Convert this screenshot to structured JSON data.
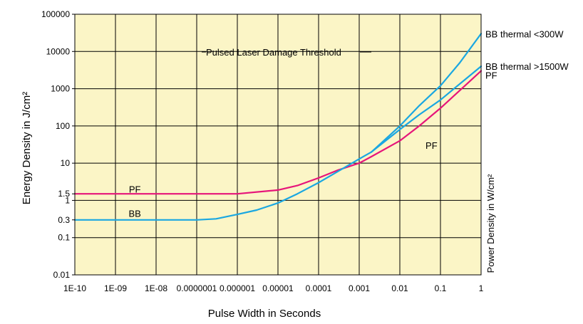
{
  "chart_data": {
    "type": "line",
    "title": "Pulsed Laser Damage Threshold",
    "xlabel": "Pulse Width in Seconds",
    "ylabel": "Energy Density in J/cm²",
    "ylabel_right": "Power Density in W/cm²",
    "x_scale": "log",
    "y_scale": "log",
    "xlim": [
      1e-10,
      1
    ],
    "ylim": [
      0.01,
      100000
    ],
    "grid": true,
    "x_ticks": [
      {
        "v": 1e-10,
        "label": "1E-10"
      },
      {
        "v": 1e-09,
        "label": "1E-09"
      },
      {
        "v": 1e-08,
        "label": "1E-08"
      },
      {
        "v": 1e-07,
        "label": "0.0000001"
      },
      {
        "v": 1e-06,
        "label": "0.000001"
      },
      {
        "v": 1e-05,
        "label": "0.00001"
      },
      {
        "v": 0.0001,
        "label": "0.0001"
      },
      {
        "v": 0.001,
        "label": "0.001"
      },
      {
        "v": 0.01,
        "label": "0.01"
      },
      {
        "v": 0.1,
        "label": "0.1"
      },
      {
        "v": 1,
        "label": "1"
      }
    ],
    "y_ticks": [
      {
        "v": 100000,
        "label": "100000"
      },
      {
        "v": 10000,
        "label": "10000"
      },
      {
        "v": 1000,
        "label": "1000"
      },
      {
        "v": 100,
        "label": "100"
      },
      {
        "v": 10,
        "label": "10"
      },
      {
        "v": 1.5,
        "label": "1.5"
      },
      {
        "v": 1,
        "label": "1"
      },
      {
        "v": 0.3,
        "label": "0.3"
      },
      {
        "v": 0.1,
        "label": "0.1"
      },
      {
        "v": 0.01,
        "label": "0.01"
      }
    ],
    "series": [
      {
        "name": "PF",
        "color": "#e6157a",
        "points": [
          [
            1e-10,
            1.5
          ],
          [
            1e-06,
            1.5
          ],
          [
            1e-05,
            1.9
          ],
          [
            3e-05,
            2.5
          ],
          [
            0.0001,
            4.0
          ],
          [
            0.0003,
            6.5
          ],
          [
            0.001,
            10
          ],
          [
            0.002,
            15
          ],
          [
            0.01,
            40
          ],
          [
            0.03,
            100
          ],
          [
            0.1,
            300
          ],
          [
            1,
            3000
          ]
        ]
      },
      {
        "name": "BB thermal >1500W",
        "color": "#1aa7e1",
        "points": [
          [
            1e-10,
            0.3
          ],
          [
            1e-07,
            0.3
          ],
          [
            3e-07,
            0.32
          ],
          [
            1e-06,
            0.42
          ],
          [
            3e-06,
            0.55
          ],
          [
            1e-05,
            0.85
          ],
          [
            3e-05,
            1.5
          ],
          [
            0.0001,
            3
          ],
          [
            0.0003,
            6
          ],
          [
            0.001,
            13
          ],
          [
            0.002,
            20
          ],
          [
            0.01,
            80
          ],
          [
            0.03,
            200
          ],
          [
            0.1,
            500
          ],
          [
            1,
            4000
          ]
        ]
      },
      {
        "name": "BB thermal <300W",
        "color": "#1aa7e1",
        "points": [
          [
            0.002,
            20
          ],
          [
            0.01,
            100
          ],
          [
            0.03,
            350
          ],
          [
            0.1,
            1200
          ],
          [
            0.3,
            5000
          ],
          [
            1,
            30000
          ]
        ]
      }
    ],
    "annotations": [
      {
        "text": "PF",
        "x": 3e-09,
        "y": 2.0
      },
      {
        "text": "BB",
        "x": 3e-09,
        "y": 0.45
      },
      {
        "text": "PF",
        "x": 0.06,
        "y": 30
      },
      {
        "text": "BB thermal <300W",
        "side": "right",
        "y": 30000
      },
      {
        "text": "BB thermal >1500W",
        "side": "right",
        "y": 4000
      },
      {
        "text": "PF",
        "side": "right",
        "y": 2300
      }
    ]
  }
}
